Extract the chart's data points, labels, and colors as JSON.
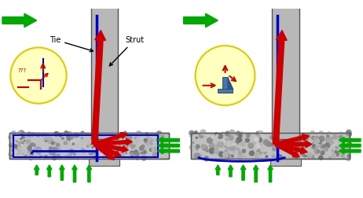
{
  "bg_color": "#ffffff",
  "blue_color": "#0000cc",
  "red_color": "#cc0000",
  "green_color": "#00aa00",
  "black_color": "#000000",
  "figsize": [
    4.62,
    2.52
  ],
  "dpi": 100
}
